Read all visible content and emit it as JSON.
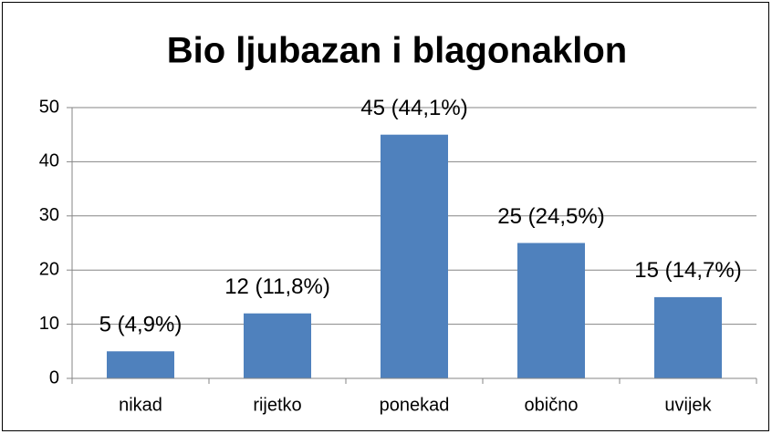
{
  "chart_data": {
    "type": "bar",
    "title": "Bio ljubazan i blagonaklon",
    "categories": [
      "nikad",
      "rijetko",
      "ponekad",
      "obično",
      "uvijek"
    ],
    "values": [
      5,
      12,
      45,
      25,
      15
    ],
    "value_labels": [
      "5 (4,9%)",
      "12 (11,8%)",
      "45 (44,1%)",
      "25 (24,5%)",
      "15 (14,7%)"
    ],
    "color": "#4f81bd",
    "ylim": [
      0,
      50
    ],
    "yticks": [
      0,
      10,
      20,
      30,
      40,
      50
    ],
    "grid": true
  }
}
